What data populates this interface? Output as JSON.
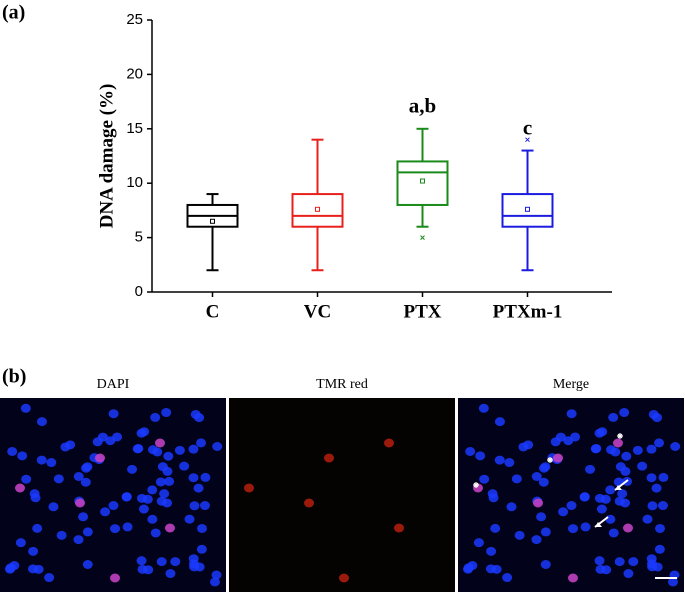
{
  "panel_labels": [
    "(a)",
    "(b)"
  ],
  "chart_data": {
    "type": "box",
    "y_label": "DNA damage (%)",
    "categories": [
      "C",
      "VC",
      "PTX",
      "PTXm-1"
    ],
    "colors": [
      "#000000",
      "#e8201c",
      "#1a8a1a",
      "#1c1ce0"
    ],
    "min": [
      2,
      2,
      6,
      2
    ],
    "q1": [
      6,
      6,
      8,
      6
    ],
    "median": [
      7,
      7,
      11,
      7
    ],
    "q3": [
      8,
      9,
      12,
      9
    ],
    "max": [
      9,
      14,
      15,
      13
    ],
    "mean": [
      6.5,
      7.6,
      10.2,
      7.6
    ],
    "outliers": [
      [],
      [],
      [
        5
      ],
      [
        14
      ]
    ],
    "annotations": [
      null,
      null,
      "a,b",
      "c"
    ],
    "ylim": [
      0,
      25
    ],
    "yticks": [
      0,
      5,
      10,
      15,
      20,
      25
    ],
    "grid": false
  },
  "images": [
    "DAPI",
    "TMR red",
    "Merge"
  ]
}
